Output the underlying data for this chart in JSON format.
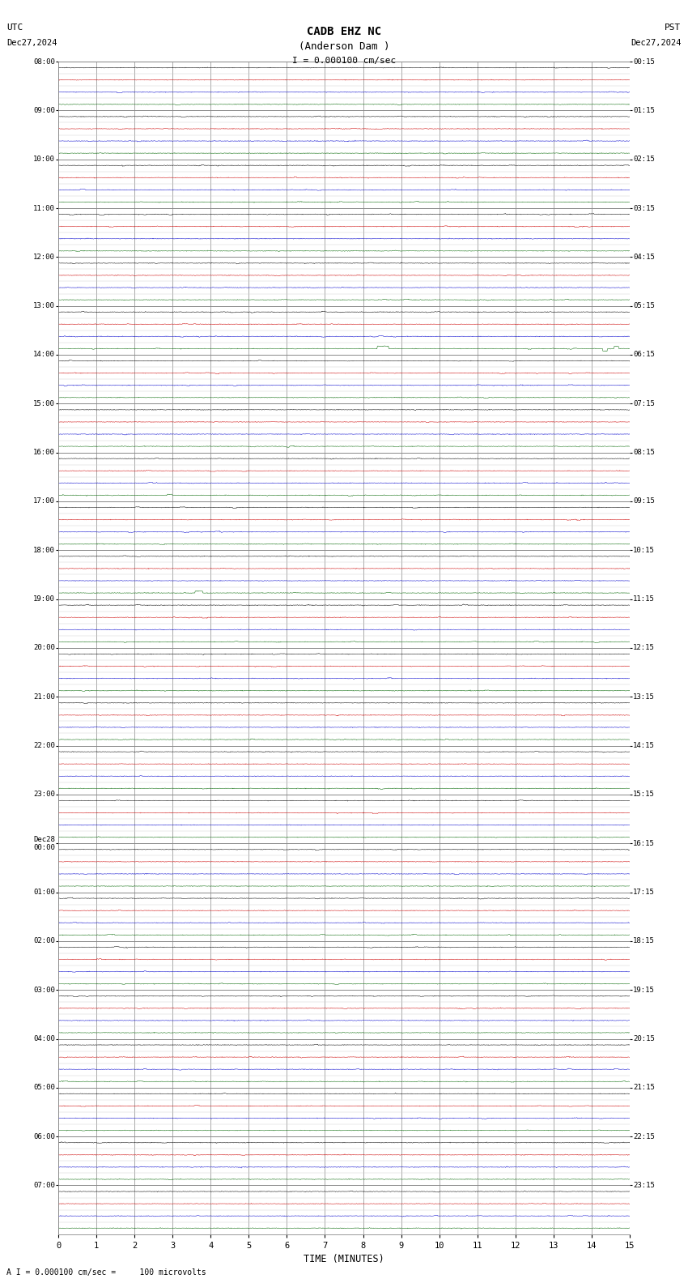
{
  "title_line1": "CADB EHZ NC",
  "title_line2": "(Anderson Dam )",
  "scale_text": "I = 0.000100 cm/sec",
  "utc_label": "UTC",
  "utc_date": "Dec27,2024",
  "pst_label": "PST",
  "pst_date": "Dec27,2024",
  "bottom_label": "A I = 0.000100 cm/sec =     100 microvolts",
  "xlabel": "TIME (MINUTES)",
  "xmin": 0,
  "xmax": 15,
  "xticks": [
    0,
    1,
    2,
    3,
    4,
    5,
    6,
    7,
    8,
    9,
    10,
    11,
    12,
    13,
    14,
    15
  ],
  "bg_color": "#ffffff",
  "grid_color_major": "#888888",
  "grid_color_minor": "#cccccc",
  "trace_colors": [
    "#000000",
    "#cc0000",
    "#0000cc",
    "#006600"
  ],
  "font_family": "monospace",
  "utc_hour_labels": [
    "08:00",
    "09:00",
    "10:00",
    "11:00",
    "12:00",
    "13:00",
    "14:00",
    "15:00",
    "16:00",
    "17:00",
    "18:00",
    "19:00",
    "20:00",
    "21:00",
    "22:00",
    "23:00",
    "Dec28\n00:00",
    "01:00",
    "02:00",
    "03:00",
    "04:00",
    "05:00",
    "06:00",
    "07:00"
  ],
  "pst_hour_labels": [
    "00:15",
    "01:15",
    "02:15",
    "03:15",
    "04:15",
    "05:15",
    "06:15",
    "07:15",
    "08:15",
    "09:15",
    "10:15",
    "11:15",
    "12:15",
    "13:15",
    "14:15",
    "15:15",
    "16:15",
    "17:15",
    "18:15",
    "19:15",
    "20:15",
    "21:15",
    "22:15",
    "23:15"
  ],
  "n_hours": 24,
  "rows_per_hour": 4,
  "noise_base": 0.012,
  "noise_scale": 0.025
}
